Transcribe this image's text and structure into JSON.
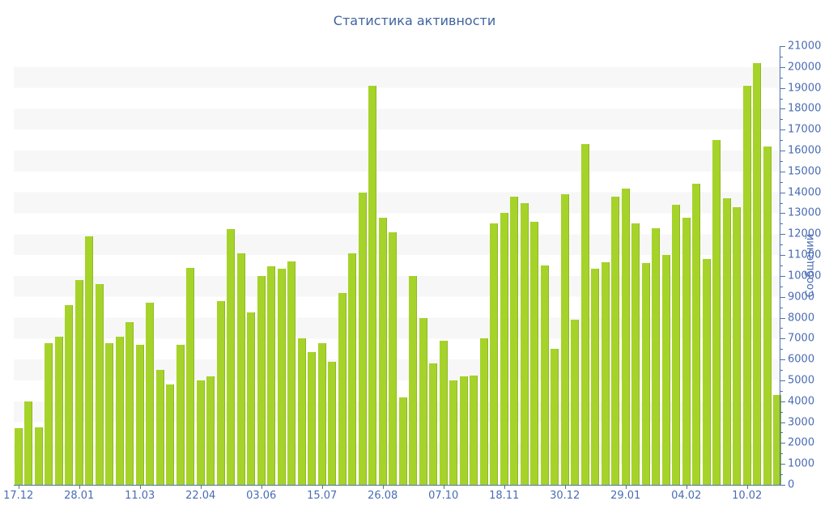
{
  "colors": {
    "bar": "#a6d32a",
    "bar_edge": "#8fb722",
    "axis": "#4e71ad",
    "labels": "#4a6cb3",
    "title": "#3f639f",
    "stripe": "#f7f7f7"
  },
  "chart_data": {
    "type": "bar",
    "title": "Статистика активности",
    "ylabel": "Сообщений",
    "ylim": [
      0,
      21000
    ],
    "y_tick_step": 1000,
    "y_minor_tick_step": 500,
    "grid": "alternating horizontal 1000-unit stripes",
    "legend": "none",
    "axis_side": "right",
    "x_tick_labels": [
      "17.12",
      "28.01",
      "11.03",
      "22.04",
      "03.06",
      "15.07",
      "26.08",
      "07.10",
      "18.11",
      "30.12",
      "29.01",
      "04.02",
      "10.02"
    ],
    "x_tick_every_n_bars": 6,
    "values": [
      2700,
      4000,
      2750,
      6800,
      7100,
      8600,
      9800,
      11900,
      9600,
      6800,
      7100,
      7800,
      6700,
      8700,
      5500,
      4800,
      6700,
      10400,
      5000,
      5200,
      8800,
      12250,
      11100,
      8250,
      10000,
      10450,
      10350,
      10700,
      7000,
      6350,
      6800,
      5900,
      9200,
      11100,
      14000,
      19100,
      12800,
      12100,
      4200,
      10000,
      8000,
      5800,
      6900,
      5000,
      5200,
      5250,
      7000,
      12500,
      13000,
      13800,
      13500,
      12600,
      10500,
      6500,
      13900,
      7900,
      16300,
      10350,
      10650,
      13800,
      14200,
      12500,
      10600,
      12300,
      11000,
      13400,
      12800,
      14400,
      10800,
      16500,
      13700,
      13300,
      19100,
      20200,
      16200,
      4300
    ]
  }
}
